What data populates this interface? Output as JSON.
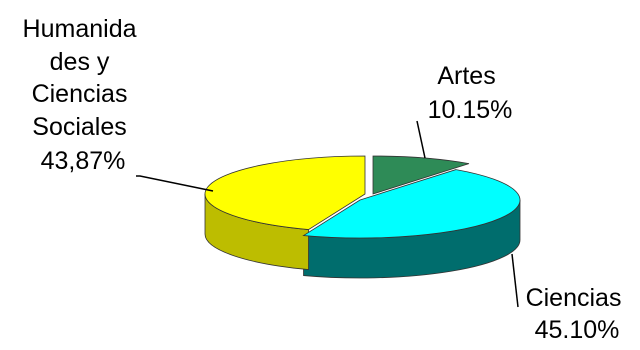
{
  "chart_data": {
    "type": "pie",
    "style": "3d-exploded-tilted",
    "slices": [
      {
        "category": "Artes",
        "label_lines": [
          "Artes",
          "10.15%"
        ],
        "value": 10.15,
        "color": "#2e8b57",
        "side_color": "#1f6a3f"
      },
      {
        "category": "Ciencias",
        "label_lines": [
          "Ciencias",
          "45.10%"
        ],
        "value": 45.1,
        "color": "#00ffff",
        "side_color": "#006d6d"
      },
      {
        "category": "Humanidades y Ciencias Sociales",
        "label_lines": [
          "Humanida",
          "des y",
          "Ciencias",
          "Sociales",
          "43,87%"
        ],
        "value": 43.87,
        "color": "#ffff00",
        "side_color": "#bdbd00"
      }
    ],
    "legend": "none"
  }
}
